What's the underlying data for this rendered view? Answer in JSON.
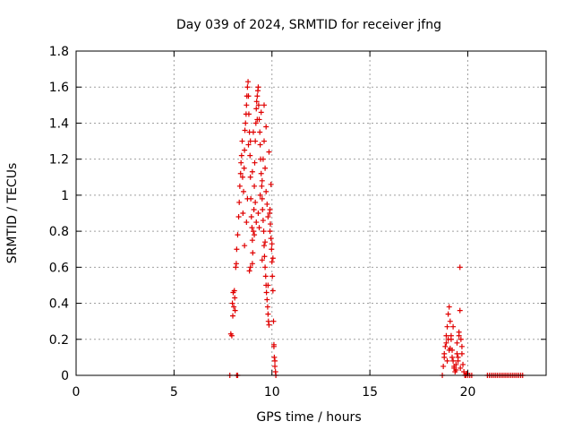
{
  "chart_data": {
    "type": "scatter",
    "title": "Day 039 of 2024, SRMTID for receiver jfng",
    "xlabel": "GPS time / hours",
    "ylabel": "SRMTID / TECUs",
    "xlim": [
      0,
      24
    ],
    "ylim": [
      0,
      1.8
    ],
    "xticks": [
      0,
      5,
      10,
      15,
      20
    ],
    "xtick_labels": [
      "0",
      "5",
      "10",
      "15",
      "20"
    ],
    "yticks": [
      0,
      0.2,
      0.4,
      0.6,
      0.8,
      1,
      1.2,
      1.4,
      1.6,
      1.8
    ],
    "ytick_labels": [
      "0",
      "0.2",
      "0.4",
      "0.6",
      "0.8",
      "1",
      "1.2",
      "1.4",
      "1.6",
      "1.8"
    ],
    "grid": true,
    "marker": "+",
    "series": [
      {
        "name": "SRMTID",
        "color": "#e00000",
        "x": [
          7.85,
          7.9,
          8.2,
          8.25,
          7.95,
          7.98,
          8.0,
          8.02,
          8.05,
          8.08,
          8.1,
          8.12,
          8.15,
          8.18,
          8.2,
          8.25,
          8.3,
          8.33,
          8.36,
          8.4,
          8.42,
          8.45,
          8.48,
          8.5,
          8.52,
          8.55,
          8.58,
          8.6,
          8.62,
          8.65,
          8.68,
          8.7,
          8.72,
          8.75,
          8.78,
          8.8,
          8.82,
          8.85,
          8.88,
          8.9,
          8.92,
          8.95,
          8.98,
          9.0,
          9.02,
          9.05,
          9.08,
          9.1,
          9.12,
          9.15,
          9.18,
          9.2,
          9.22,
          9.25,
          9.28,
          9.3,
          9.32,
          9.35,
          9.38,
          9.4,
          9.42,
          9.45,
          9.48,
          9.5,
          9.52,
          9.55,
          9.58,
          9.6,
          9.62,
          9.65,
          9.68,
          9.7,
          9.72,
          9.75,
          9.78,
          9.8,
          9.82,
          9.85,
          9.88,
          9.9,
          9.92,
          9.95,
          9.98,
          10.0,
          10.02,
          10.05,
          10.08,
          10.1,
          10.12,
          10.15,
          10.18,
          10.2,
          8.85,
          8.9,
          9.0,
          9.1,
          9.2,
          9.3,
          9.4,
          9.5,
          9.55,
          9.6,
          9.65,
          9.7,
          9.75,
          9.8,
          9.9,
          10.0,
          10.05,
          10.1,
          10.15,
          8.9,
          9.05,
          9.25,
          9.45,
          9.6,
          9.7,
          9.85,
          9.95,
          8.6,
          8.7,
          8.75,
          8.8,
          9.0,
          9.15,
          9.35,
          9.5,
          9.65,
          9.8,
          18.7,
          18.75,
          18.8,
          18.85,
          18.9,
          18.95,
          19.0,
          19.05,
          19.1,
          19.15,
          19.2,
          19.25,
          19.3,
          19.35,
          19.4,
          19.45,
          19.5,
          19.55,
          19.6,
          19.65,
          19.7,
          19.75,
          19.8,
          19.85,
          19.9,
          19.95,
          20.0,
          20.1,
          20.2,
          18.8,
          18.9,
          19.0,
          19.1,
          19.2,
          19.3,
          19.4,
          19.5,
          19.6,
          19.7,
          18.95,
          19.05,
          19.15,
          19.25,
          19.45,
          19.55,
          19.62,
          21.0,
          21.2,
          21.4,
          21.6,
          21.8,
          22.0,
          22.2,
          22.4,
          22.6,
          22.8,
          21.1,
          21.3,
          21.5,
          21.7,
          21.9,
          22.1,
          22.3,
          22.5,
          22.7
        ],
        "y": [
          0.0,
          0.23,
          0.0,
          0.0,
          0.22,
          0.4,
          0.33,
          0.46,
          0.38,
          0.47,
          0.43,
          0.36,
          0.6,
          0.62,
          0.7,
          0.78,
          0.88,
          0.96,
          1.05,
          1.12,
          1.18,
          1.22,
          1.3,
          1.1,
          0.9,
          1.02,
          1.15,
          1.25,
          1.36,
          1.4,
          1.45,
          1.5,
          1.55,
          1.6,
          1.63,
          1.55,
          1.45,
          1.35,
          1.22,
          1.1,
          0.98,
          0.88,
          0.82,
          0.75,
          0.68,
          0.8,
          0.92,
          1.05,
          1.18,
          1.3,
          1.4,
          1.48,
          1.52,
          1.55,
          1.58,
          1.6,
          1.5,
          1.42,
          1.35,
          1.28,
          1.2,
          1.12,
          1.05,
          0.98,
          0.92,
          0.86,
          0.8,
          0.72,
          0.66,
          0.6,
          0.55,
          0.5,
          0.46,
          0.42,
          0.38,
          0.34,
          0.3,
          0.28,
          0.9,
          0.92,
          0.84,
          0.76,
          0.7,
          0.63,
          0.55,
          0.47,
          0.3,
          0.17,
          0.1,
          0.05,
          0.02,
          0.0,
          0.58,
          0.6,
          0.62,
          0.78,
          0.85,
          0.9,
          1.0,
          1.08,
          1.2,
          1.3,
          1.15,
          1.02,
          0.95,
          0.88,
          0.8,
          0.73,
          0.65,
          0.16,
          0.08,
          1.3,
          1.35,
          1.42,
          1.46,
          1.5,
          1.38,
          1.24,
          1.06,
          0.72,
          0.85,
          0.98,
          1.28,
          1.13,
          0.96,
          0.82,
          0.64,
          0.74,
          0.5,
          0.0,
          0.05,
          0.1,
          0.16,
          0.22,
          0.27,
          0.34,
          0.38,
          0.3,
          0.2,
          0.14,
          0.08,
          0.04,
          0.02,
          0.06,
          0.12,
          0.1,
          0.24,
          0.36,
          0.2,
          0.12,
          0.06,
          0.02,
          0.0,
          0.0,
          0.01,
          0.0,
          0.0,
          0.0,
          0.12,
          0.18,
          0.2,
          0.15,
          0.1,
          0.05,
          0.03,
          0.08,
          0.6,
          0.16,
          0.08,
          0.14,
          0.22,
          0.27,
          0.18,
          0.22,
          0.04,
          0.0,
          0.0,
          0.0,
          0.0,
          0.0,
          0.0,
          0.0,
          0.0,
          0.0,
          0.0,
          0.0,
          0.0,
          0.0,
          0.0,
          0.0,
          0.0,
          0.0,
          0.0,
          0.0
        ]
      }
    ]
  }
}
